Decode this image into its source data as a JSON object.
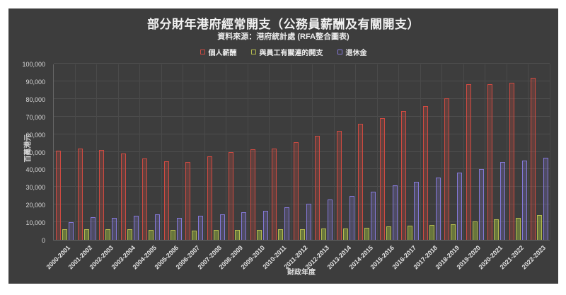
{
  "page": {
    "background": "#ffffff",
    "panel_background": "#3d3d3d"
  },
  "header": {
    "title": "部分財年港府經常開支（公務員薪酬及有關開支）",
    "subtitle": "資料來源：港府統計處 (RFA整合圖表)"
  },
  "legend": [
    {
      "label": "個人薪酬",
      "color": "#cf4a41"
    },
    {
      "label": "與員工有關連的開支",
      "color": "#b4ba4e"
    },
    {
      "label": "退休金",
      "color": "#8478d8"
    }
  ],
  "axes": {
    "xlabel": "財政年度",
    "ylabel": "百萬港元"
  },
  "chart_data": {
    "type": "bar",
    "title": "部分財年港府經常開支（公務員薪酬及有關開支）",
    "subtitle": "資料來源：港府統計處 (RFA整合圖表)",
    "xlabel": "財政年度",
    "ylabel": "百萬港元",
    "ylim": [
      0,
      100000
    ],
    "ytick_step": 10000,
    "grid": true,
    "legend_position": "top",
    "background": "#3d3d3d",
    "categories": [
      "2000-2001",
      "2001-2002",
      "2002-2003",
      "2003-2004",
      "2004-2005",
      "2005-2006",
      "2006-2007",
      "2007-2008",
      "2008-2009",
      "2009-2010",
      "2010-2011",
      "2011-2012",
      "2012-2013",
      "2013-2014",
      "2014-2015",
      "2015-2016",
      "2016-2017",
      "2017-2018",
      "2018-2019",
      "2019-2020",
      "2020-2021",
      "2021-2022",
      "2022-2023"
    ],
    "series": [
      {
        "name": "個人薪酬",
        "color": "#cf4a41",
        "fill": "rgba(207,74,65,0.25)",
        "values": [
          50500,
          52000,
          51000,
          49000,
          46000,
          44500,
          44000,
          47500,
          50000,
          51500,
          52000,
          55500,
          59000,
          62000,
          66000,
          69000,
          73000,
          76000,
          80500,
          88500,
          88500,
          89000,
          92000
        ]
      },
      {
        "name": "與員工有關連的開支",
        "color": "#b4ba4e",
        "fill": "rgba(140,165,60,0.55)",
        "values": [
          6000,
          6200,
          6200,
          6000,
          5800,
          5500,
          5300,
          5500,
          5800,
          5800,
          6000,
          6000,
          6300,
          6500,
          7000,
          7800,
          8000,
          8300,
          9000,
          10500,
          11600,
          12400,
          14000
        ]
      },
      {
        "name": "退休金",
        "color": "#8478d8",
        "fill": "rgba(132,120,216,0.25)",
        "values": [
          10000,
          13000,
          12500,
          13500,
          14500,
          12500,
          13500,
          14500,
          15500,
          16500,
          18500,
          20500,
          23000,
          25000,
          27500,
          31000,
          33000,
          35500,
          38000,
          40000,
          44000,
          45000,
          46500
        ]
      }
    ]
  }
}
